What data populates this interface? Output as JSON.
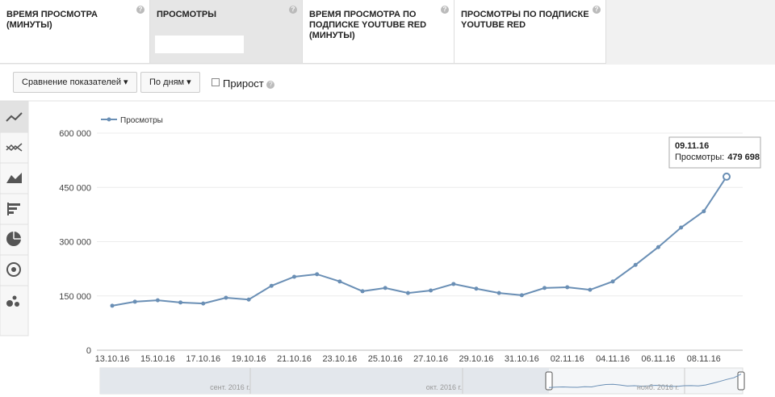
{
  "tabs": [
    {
      "title": "ВРЕМЯ ПРОСМОТРА (МИНУТЫ)",
      "selected": false
    },
    {
      "title": "ПРОСМОТРЫ",
      "selected": true
    },
    {
      "title": "ВРЕМЯ ПРОСМОТРА ПО ПОДПИСКЕ YOUTUBE RED (МИНУТЫ)",
      "selected": false
    },
    {
      "title": "ПРОСМОТРЫ ПО ПОДПИСКЕ YOUTUBE RED",
      "selected": false
    }
  ],
  "toolbar": {
    "compare": "Сравнение показателей",
    "period": "По дням",
    "growth": "Прирост"
  },
  "chart_data": {
    "type": "line",
    "categories": [
      "13.10.16",
      null,
      "15.10.16",
      null,
      "17.10.16",
      null,
      "19.10.16",
      null,
      "21.10.16",
      null,
      "23.10.16",
      null,
      "25.10.16",
      null,
      "27.10.16",
      null,
      "29.10.16",
      null,
      "31.10.16",
      null,
      "02.11.16",
      null,
      "04.11.16",
      null,
      "06.11.16",
      null,
      "08.11.16",
      null
    ],
    "series": [
      {
        "name": "Просмотры",
        "color": "#6a8fb5",
        "values": [
          123000,
          134000,
          138000,
          132000,
          129000,
          145000,
          140000,
          178000,
          203000,
          210000,
          190000,
          163000,
          172000,
          158000,
          165000,
          183000,
          170000,
          158000,
          152000,
          172000,
          174000,
          167000,
          190000,
          236000,
          285000,
          339000,
          384000,
          479698
        ]
      }
    ],
    "ylim": [
      0,
      600000
    ],
    "yticks": [
      0,
      {
        "value": 150000,
        "label": "150 000"
      },
      {
        "value": 300000,
        "label": "300 000"
      },
      {
        "value": 450000,
        "label": "450 000"
      },
      {
        "value": 600000,
        "label": "600 000"
      }
    ],
    "grid": true,
    "tooltip": {
      "title": "09.11.16",
      "text": "Просмотры:",
      "value_label": "479 698"
    },
    "navigator_labels": [
      "сент. 2016 г.",
      "окт. 2016 г.",
      "нояб. 2016 г."
    ]
  }
}
